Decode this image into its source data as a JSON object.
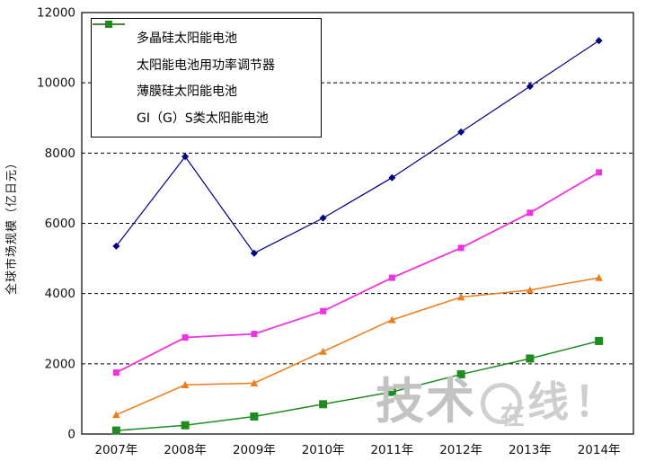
{
  "chart_data": {
    "type": "line",
    "title": "",
    "xlabel": "",
    "ylabel": "全球市场规模（亿日元）",
    "categories": [
      "2007年",
      "2008年",
      "2009年",
      "2010年",
      "2011年",
      "2012年",
      "2013年",
      "2014年"
    ],
    "y_ticks": [
      0,
      2000,
      4000,
      6000,
      8000,
      10000,
      12000
    ],
    "ylim": [
      0,
      12000
    ],
    "grid": "horizontal-dashed",
    "legend_position": "inside-top-left",
    "series": [
      {
        "name": "多晶硅太阳能电池",
        "marker": "diamond",
        "color": "#000080",
        "values": [
          5350,
          7900,
          5150,
          6150,
          7300,
          8600,
          9900,
          11200
        ]
      },
      {
        "name": "太阳能电池用功率调节器",
        "marker": "square",
        "color": "#f033e0",
        "values": [
          1750,
          2750,
          2850,
          3500,
          4450,
          5300,
          6300,
          7450
        ]
      },
      {
        "name": "薄膜硅太阳能电池",
        "marker": "triangle",
        "color": "#ef7d1d",
        "values": [
          550,
          1400,
          1450,
          2350,
          3250,
          3900,
          4100,
          4450
        ]
      },
      {
        "name": "GI（G）S类太阳能电池",
        "marker": "square",
        "color": "#1e8c1e",
        "values": [
          100,
          250,
          500,
          850,
          1200,
          1700,
          2150,
          2650
        ]
      }
    ]
  },
  "watermark": {
    "text": "技术在线！",
    "prefix": "技术",
    "circled": "在",
    "suffix": "线！"
  }
}
